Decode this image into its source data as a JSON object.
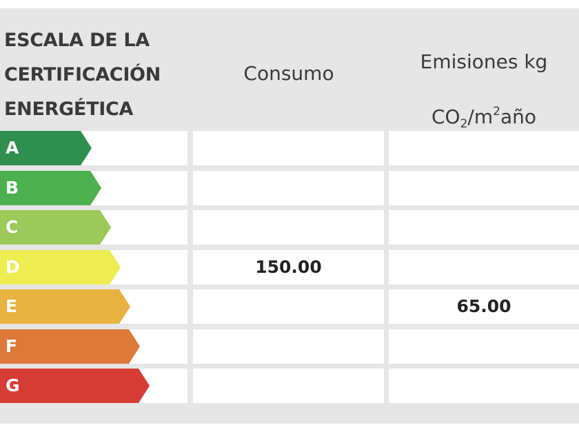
{
  "header": {
    "scale_lines": [
      "ESCALA DE LA",
      "CERTIFICACIÓN",
      "ENERGÉTICA"
    ],
    "consumo": "Consumo",
    "emisiones_line1": "Emisiones kg",
    "emisiones_unit": {
      "co": "CO",
      "co_sub": "2",
      "slash_m": "/m",
      "m_sup": "2",
      "ano": "año"
    }
  },
  "ratings": [
    {
      "letter": "A",
      "color": "#2f8f4e",
      "consumo": "",
      "emisiones": ""
    },
    {
      "letter": "B",
      "color": "#4caf50",
      "consumo": "",
      "emisiones": ""
    },
    {
      "letter": "C",
      "color": "#9bc95a",
      "consumo": "",
      "emisiones": ""
    },
    {
      "letter": "D",
      "color": "#eded52",
      "consumo": "150.00",
      "emisiones": ""
    },
    {
      "letter": "E",
      "color": "#e8b340",
      "consumo": "",
      "emisiones": "65.00"
    },
    {
      "letter": "F",
      "color": "#dd7a3a",
      "consumo": "",
      "emisiones": ""
    },
    {
      "letter": "G",
      "color": "#d63c35",
      "consumo": "",
      "emisiones": ""
    }
  ]
}
